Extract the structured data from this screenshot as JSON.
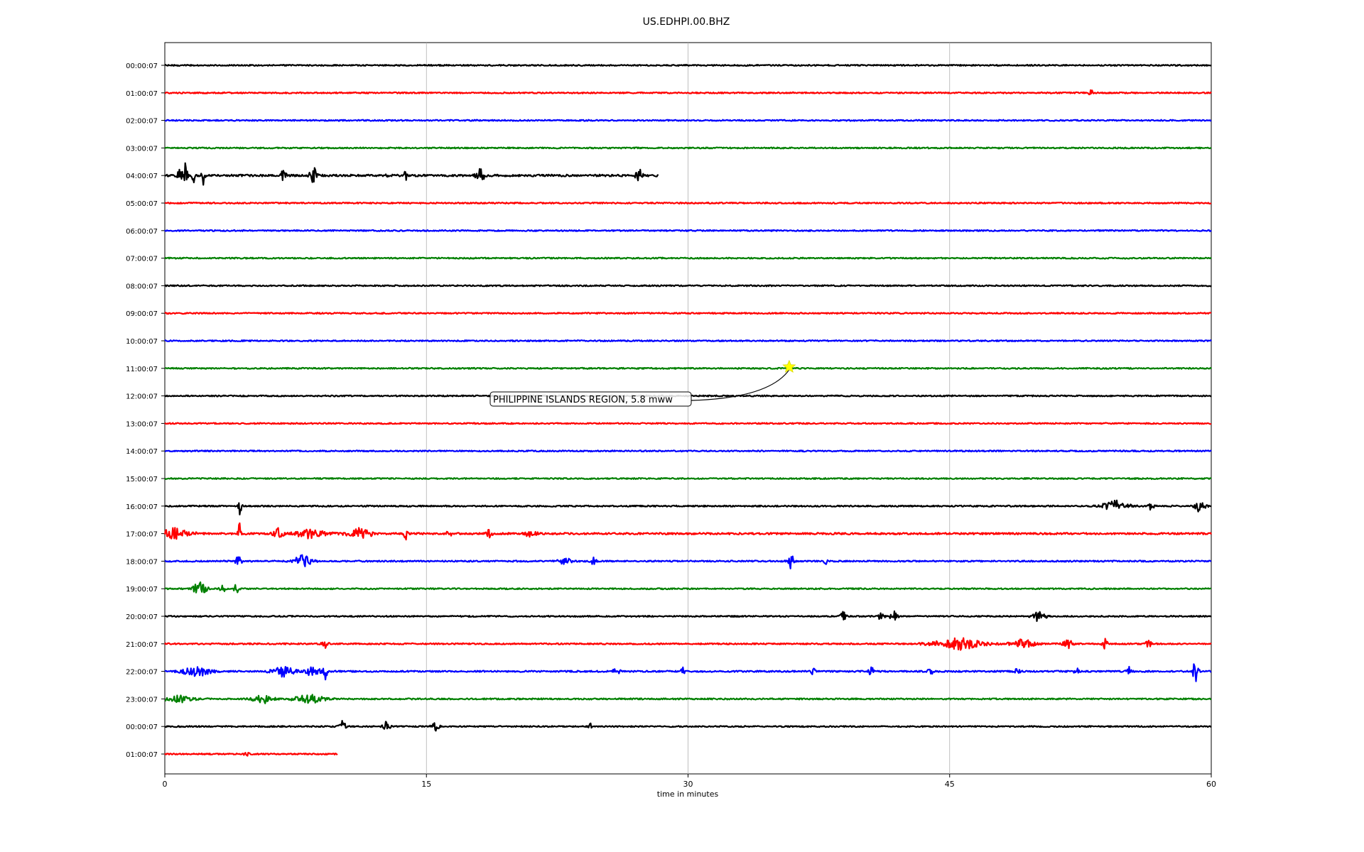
{
  "chart_data": {
    "type": "line",
    "title": "US.EDHPI.00.BHZ",
    "xlabel": "time in minutes",
    "ylabel": "",
    "xlim": [
      0,
      60
    ],
    "x_ticks": [
      "0",
      "15",
      "30",
      "45",
      "60"
    ],
    "x_tick_values": [
      0,
      15,
      30,
      45,
      60
    ],
    "grid_vertical": true,
    "row_colors": [
      "#000000",
      "#ff0000",
      "#0000ff",
      "#008000"
    ],
    "rows": [
      {
        "label": "00:00:07",
        "end_minute": 60,
        "color": "#000000",
        "noise": 0.22,
        "bursts": []
      },
      {
        "label": "01:00:07",
        "end_minute": 60,
        "color": "#ff0000",
        "noise": 0.22,
        "bursts": [
          {
            "t": 53.1,
            "a": 0.7,
            "w": 0.2
          }
        ]
      },
      {
        "label": "02:00:07",
        "end_minute": 60,
        "color": "#0000ff",
        "noise": 0.22,
        "bursts": []
      },
      {
        "label": "03:00:07",
        "end_minute": 60,
        "color": "#008000",
        "noise": 0.22,
        "bursts": []
      },
      {
        "label": "04:00:07",
        "end_minute": 28.3,
        "color": "#000000",
        "noise": 0.35,
        "bursts": [
          {
            "t": 0.9,
            "a": 1.2,
            "w": 0.4
          },
          {
            "t": 1.2,
            "a": 2.6,
            "w": 0.2
          },
          {
            "t": 1.6,
            "a": 2.0,
            "w": 0.2
          },
          {
            "t": 2.2,
            "a": 1.8,
            "w": 0.2
          },
          {
            "t": 6.8,
            "a": 1.0,
            "w": 0.3
          },
          {
            "t": 8.5,
            "a": 1.6,
            "w": 0.4
          },
          {
            "t": 12.8,
            "a": 1.6,
            "w": 0.2
          },
          {
            "t": 13.8,
            "a": 0.9,
            "w": 0.2
          },
          {
            "t": 18.1,
            "a": 1.0,
            "w": 0.5
          },
          {
            "t": 27.2,
            "a": 1.2,
            "w": 0.4
          }
        ]
      },
      {
        "label": "05:00:07",
        "end_minute": 60,
        "color": "#ff0000",
        "noise": 0.22,
        "bursts": []
      },
      {
        "label": "06:00:07",
        "end_minute": 60,
        "color": "#0000ff",
        "noise": 0.22,
        "bursts": []
      },
      {
        "label": "07:00:07",
        "end_minute": 60,
        "color": "#008000",
        "noise": 0.22,
        "bursts": []
      },
      {
        "label": "08:00:07",
        "end_minute": 60,
        "color": "#000000",
        "noise": 0.22,
        "bursts": []
      },
      {
        "label": "09:00:07",
        "end_minute": 60,
        "color": "#ff0000",
        "noise": 0.22,
        "bursts": []
      },
      {
        "label": "10:00:07",
        "end_minute": 60,
        "color": "#0000ff",
        "noise": 0.22,
        "bursts": []
      },
      {
        "label": "11:00:07",
        "end_minute": 60,
        "color": "#008000",
        "noise": 0.22,
        "bursts": []
      },
      {
        "label": "12:00:07",
        "end_minute": 60,
        "color": "#000000",
        "noise": 0.22,
        "bursts": []
      },
      {
        "label": "13:00:07",
        "end_minute": 60,
        "color": "#ff0000",
        "noise": 0.22,
        "bursts": []
      },
      {
        "label": "14:00:07",
        "end_minute": 60,
        "color": "#0000ff",
        "noise": 0.22,
        "bursts": []
      },
      {
        "label": "15:00:07",
        "end_minute": 60,
        "color": "#008000",
        "noise": 0.22,
        "bursts": []
      },
      {
        "label": "16:00:07",
        "end_minute": 60,
        "color": "#000000",
        "noise": 0.24,
        "bursts": [
          {
            "t": 4.3,
            "a": 1.6,
            "w": 0.2
          },
          {
            "t": 54.5,
            "a": 0.8,
            "w": 1.6
          },
          {
            "t": 56.6,
            "a": 1.4,
            "w": 0.3
          },
          {
            "t": 59.3,
            "a": 0.8,
            "w": 0.7
          }
        ]
      },
      {
        "label": "17:00:07",
        "end_minute": 60,
        "color": "#ff0000",
        "noise": 0.32,
        "bursts": [
          {
            "t": 0.6,
            "a": 0.8,
            "w": 2.0
          },
          {
            "t": 4.3,
            "a": 2.2,
            "w": 0.2
          },
          {
            "t": 6.5,
            "a": 0.8,
            "w": 0.6
          },
          {
            "t": 8.4,
            "a": 0.8,
            "w": 1.8
          },
          {
            "t": 11.2,
            "a": 0.8,
            "w": 1.5
          },
          {
            "t": 13.8,
            "a": 1.2,
            "w": 0.2
          },
          {
            "t": 16.3,
            "a": 1.9,
            "w": 0.2
          },
          {
            "t": 18.6,
            "a": 0.9,
            "w": 0.3
          },
          {
            "t": 21.0,
            "a": 0.7,
            "w": 0.6
          }
        ]
      },
      {
        "label": "18:00:07",
        "end_minute": 60,
        "color": "#0000ff",
        "noise": 0.24,
        "bursts": [
          {
            "t": 4.2,
            "a": 0.9,
            "w": 0.4
          },
          {
            "t": 7.9,
            "a": 0.9,
            "w": 1.2
          },
          {
            "t": 22.9,
            "a": 0.6,
            "w": 0.8
          },
          {
            "t": 24.6,
            "a": 0.6,
            "w": 0.4
          },
          {
            "t": 35.9,
            "a": 1.1,
            "w": 0.4
          },
          {
            "t": 37.9,
            "a": 0.6,
            "w": 0.2
          }
        ]
      },
      {
        "label": "19:00:07",
        "end_minute": 60,
        "color": "#008000",
        "noise": 0.22,
        "bursts": [
          {
            "t": 2.0,
            "a": 1.2,
            "w": 0.8
          },
          {
            "t": 3.3,
            "a": 1.2,
            "w": 0.3
          },
          {
            "t": 4.1,
            "a": 0.8,
            "w": 0.3
          }
        ]
      },
      {
        "label": "20:00:07",
        "end_minute": 60,
        "color": "#000000",
        "noise": 0.22,
        "bursts": [
          {
            "t": 38.9,
            "a": 0.9,
            "w": 0.3
          },
          {
            "t": 41.1,
            "a": 1.2,
            "w": 0.3
          },
          {
            "t": 41.8,
            "a": 1.0,
            "w": 0.4
          },
          {
            "t": 50.1,
            "a": 0.8,
            "w": 0.8
          }
        ]
      },
      {
        "label": "21:00:07",
        "end_minute": 60,
        "color": "#ff0000",
        "noise": 0.24,
        "bursts": [
          {
            "t": 9.2,
            "a": 0.6,
            "w": 0.4
          },
          {
            "t": 45.5,
            "a": 0.9,
            "w": 3.0
          },
          {
            "t": 49.2,
            "a": 0.7,
            "w": 1.4
          },
          {
            "t": 51.8,
            "a": 0.7,
            "w": 0.6
          },
          {
            "t": 53.9,
            "a": 0.9,
            "w": 0.3
          },
          {
            "t": 56.4,
            "a": 0.8,
            "w": 0.3
          }
        ]
      },
      {
        "label": "22:00:07",
        "end_minute": 60,
        "color": "#0000ff",
        "noise": 0.26,
        "bursts": [
          {
            "t": 1.8,
            "a": 0.9,
            "w": 1.6
          },
          {
            "t": 6.8,
            "a": 0.8,
            "w": 1.4
          },
          {
            "t": 9.2,
            "a": 2.2,
            "w": 0.2
          },
          {
            "t": 8.5,
            "a": 0.7,
            "w": 1.2
          },
          {
            "t": 25.9,
            "a": 0.7,
            "w": 0.4
          },
          {
            "t": 29.7,
            "a": 0.6,
            "w": 0.2
          },
          {
            "t": 37.2,
            "a": 0.6,
            "w": 0.3
          },
          {
            "t": 40.5,
            "a": 0.8,
            "w": 0.3
          },
          {
            "t": 43.9,
            "a": 0.7,
            "w": 0.3
          },
          {
            "t": 48.9,
            "a": 0.6,
            "w": 0.3
          },
          {
            "t": 52.3,
            "a": 0.8,
            "w": 0.3
          },
          {
            "t": 55.3,
            "a": 0.8,
            "w": 0.3
          },
          {
            "t": 59.1,
            "a": 2.2,
            "w": 0.3
          }
        ]
      },
      {
        "label": "23:00:07",
        "end_minute": 60,
        "color": "#008000",
        "noise": 0.24,
        "bursts": [
          {
            "t": 0.8,
            "a": 0.6,
            "w": 1.6
          },
          {
            "t": 5.6,
            "a": 0.7,
            "w": 1.2
          },
          {
            "t": 8.3,
            "a": 0.7,
            "w": 1.8
          }
        ]
      },
      {
        "label": "00:00:07",
        "end_minute": 60,
        "color": "#000000",
        "noise": 0.22,
        "bursts": [
          {
            "t": 10.2,
            "a": 0.9,
            "w": 0.4
          },
          {
            "t": 12.7,
            "a": 0.8,
            "w": 0.4
          },
          {
            "t": 15.5,
            "a": 0.9,
            "w": 0.4
          },
          {
            "t": 24.4,
            "a": 0.6,
            "w": 0.2
          }
        ]
      },
      {
        "label": "01:00:07",
        "end_minute": 9.9,
        "color": "#ff0000",
        "noise": 0.22,
        "bursts": [
          {
            "t": 4.7,
            "a": 0.6,
            "w": 0.3
          }
        ]
      }
    ],
    "event_marker": {
      "row": 11,
      "minute": 35.8,
      "color": "#ffff00",
      "label": "PHILIPPINE ISLANDS REGION, 5.8 mww"
    }
  }
}
